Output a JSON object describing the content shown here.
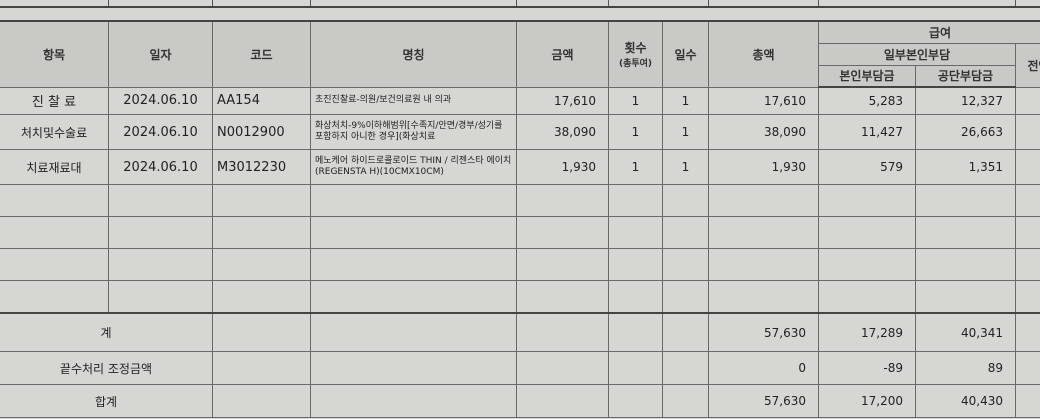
{
  "header": {
    "item": "항목",
    "date": "일자",
    "code": "코드",
    "name": "명칭",
    "amount": "금액",
    "count": "횟수",
    "count_sub": "(총투여)",
    "days": "일수",
    "total": "총액",
    "covered": "급여",
    "partial_copay": "일부본인부담",
    "patient_share": "본인부담금",
    "insurer_share": "공단부담금",
    "full_copay": "전액"
  },
  "rows": [
    {
      "item": "진 찰 료",
      "date": "2024.06.10",
      "code": "AA154",
      "name": "초진진찰료-의원/보건의료원 내 의과",
      "amount": "17,610",
      "count": "1",
      "days": "1",
      "total": "17,610",
      "patient": "5,283",
      "insurer": "12,327"
    },
    {
      "item": "처치및수술료",
      "date": "2024.06.10",
      "code": "N0012900",
      "name": "화상처치-9%이하해범위[수족지/안면/경부/성기를 포함하지 아니한 경우](화상치료",
      "amount": "38,090",
      "count": "1",
      "days": "1",
      "total": "38,090",
      "patient": "11,427",
      "insurer": "26,663"
    },
    {
      "item": "치료재료대",
      "date": "2024.06.10",
      "code": "M3012230",
      "name": "메노케어 하이드로콜로이드 THIN / 리젠스타 에이치 (REGENSTA H)(10CMX10CM)",
      "amount": "1,930",
      "count": "1",
      "days": "1",
      "total": "1,930",
      "patient": "579",
      "insurer": "1,351"
    }
  ],
  "summary": [
    {
      "label": "계",
      "total": "57,630",
      "patient": "17,289",
      "insurer": "40,341"
    },
    {
      "label": "끝수처리 조정금액",
      "total": "0",
      "patient": "-89",
      "insurer": "89"
    },
    {
      "label": "합계",
      "total": "57,630",
      "patient": "17,200",
      "insurer": "40,430"
    }
  ]
}
